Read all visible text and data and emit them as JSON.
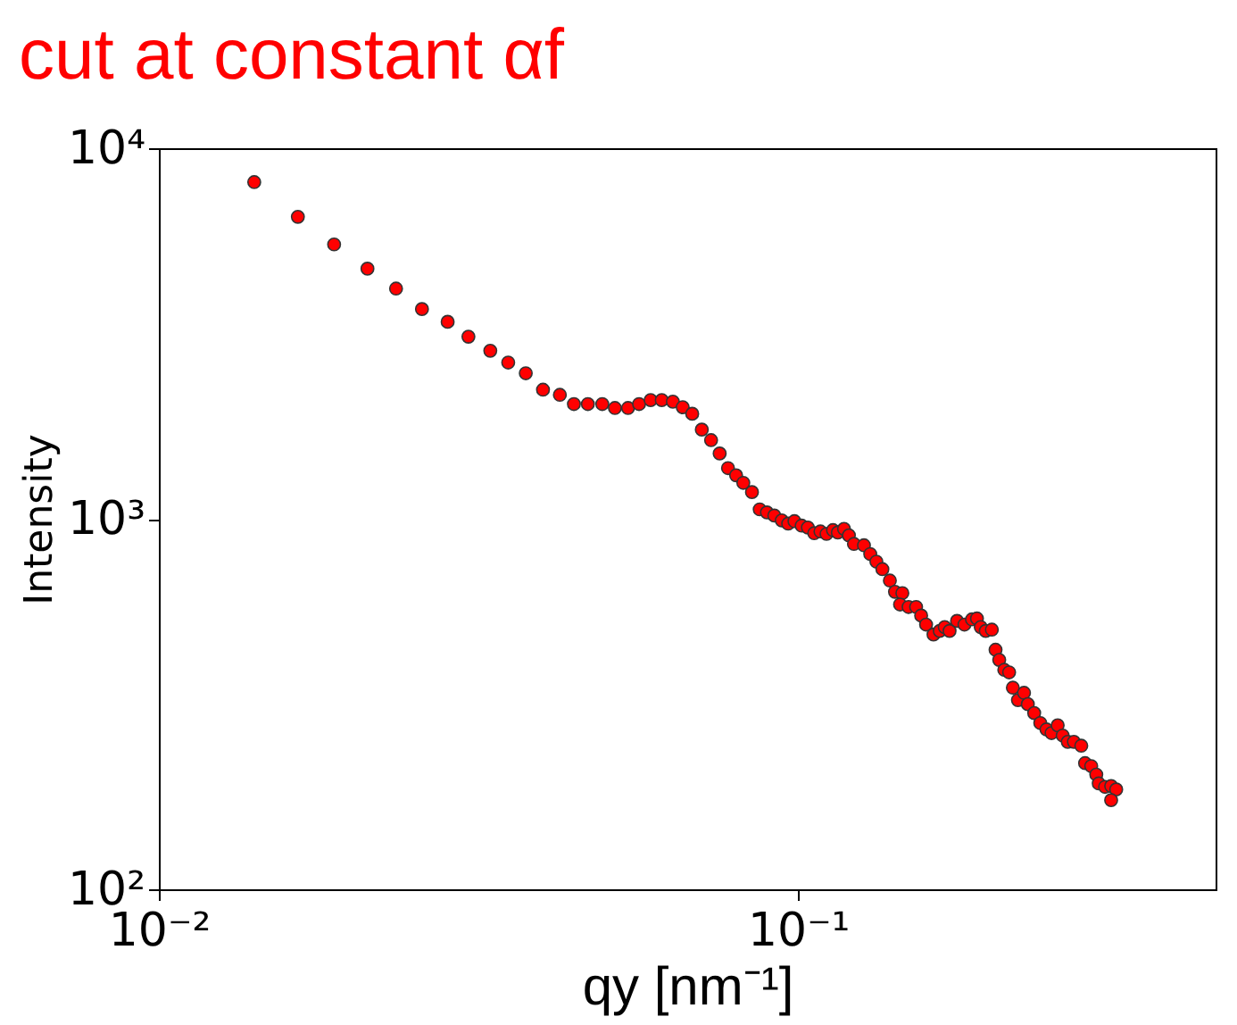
{
  "chart_data": {
    "type": "scatter",
    "title": "cut at constant αf",
    "xlabel": "qy [nm⁻¹]",
    "ylabel": "Intensity",
    "log": "xy",
    "grid": false,
    "marker": "circle",
    "xlim": [
      0.01,
      0.45
    ],
    "ylim": [
      100,
      10000
    ],
    "xticks": [
      {
        "value": 0.01,
        "label": "10⁻²"
      },
      {
        "value": 0.1,
        "label": "10⁻¹"
      }
    ],
    "yticks": [
      {
        "value": 100,
        "label": "10²"
      },
      {
        "value": 1000,
        "label": "10³"
      },
      {
        "value": 10000,
        "label": "10⁴"
      }
    ],
    "x": [
      0.0141,
      0.0165,
      0.0188,
      0.0212,
      0.0235,
      0.0258,
      0.0283,
      0.0305,
      0.033,
      0.0352,
      0.0375,
      0.0399,
      0.0424,
      0.0446,
      0.0469,
      0.0494,
      0.0517,
      0.0542,
      0.0564,
      0.0588,
      0.0612,
      0.0637,
      0.066,
      0.0683,
      0.0707,
      0.0731,
      0.0754,
      0.0777,
      0.08,
      0.0821,
      0.0847,
      0.0871,
      0.0894,
      0.0918,
      0.0943,
      0.0965,
      0.0987,
      0.1013,
      0.1036,
      0.106,
      0.1084,
      0.1108,
      0.1134,
      0.1154,
      0.118,
      0.1201,
      0.1223,
      0.1268,
      0.1297,
      0.1326,
      0.1355,
      0.1392,
      0.1418,
      0.1456,
      0.1444,
      0.1489,
      0.153,
      0.1558,
      0.1586,
      0.1629,
      0.1666,
      0.1696,
      0.1726,
      0.1773,
      0.1821,
      0.1871,
      0.1905,
      0.1931,
      0.1966,
      0.201,
      0.2037,
      0.2064,
      0.2102,
      0.2139,
      0.2168,
      0.2208,
      0.2257,
      0.2288,
      0.2341,
      0.2393,
      0.2447,
      0.2492,
      0.2548,
      0.2594,
      0.2642,
      0.2701,
      0.2774,
      0.2812,
      0.2875,
      0.2928,
      0.2954,
      0.3022,
      0.3089,
      0.3146,
      0.3089
    ],
    "series": [
      {
        "color": "#ff0000",
        "values": [
          8100,
          6530,
          5500,
          4730,
          4180,
          3680,
          3400,
          3100,
          2840,
          2640,
          2470,
          2230,
          2160,
          2040,
          2040,
          2040,
          1990,
          1990,
          2040,
          2090,
          2090,
          2070,
          2000,
          1920,
          1740,
          1630,
          1500,
          1370,
          1310,
          1250,
          1180,
          1060,
          1040,
          1020,
          990,
          970,
          985,
          958,
          947,
          914,
          924,
          910,
          932,
          918,
          939,
          902,
          855,
          848,
          803,
          766,
          731,
          681,
          635,
          630,
          587,
          578,
          578,
          548,
          518,
          487,
          498,
          510,
          498,
          530,
          518,
          535,
          538,
          510,
          498,
          502,
          443,
          416,
          391,
          385,
          350,
          324,
          339,
          316,
          299,
          281,
          270,
          264,
          277,
          260,
          250,
          250,
          244,
          219,
          215,
          204,
          193,
          189,
          190,
          186,
          174
        ]
      }
    ]
  }
}
